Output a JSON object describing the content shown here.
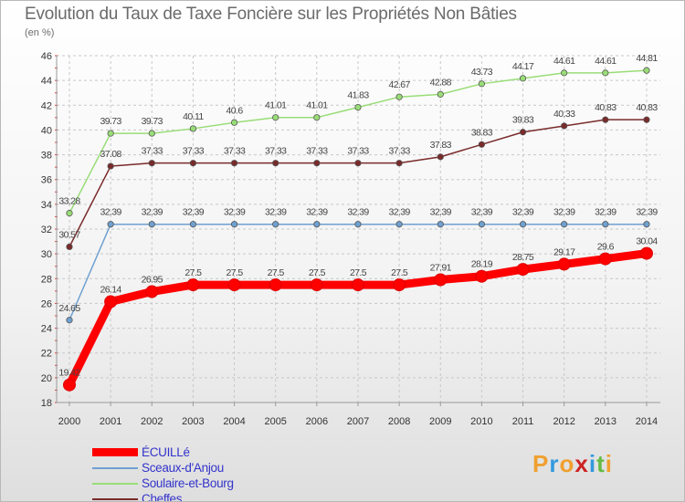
{
  "chart_data": {
    "type": "line",
    "title": "Evolution du Taux de Taxe Foncière sur les Propriétés Non Bâties",
    "ylabel": "(en %)",
    "xlabel": "",
    "x": [
      "2000",
      "2001",
      "2002",
      "2003",
      "2004",
      "2005",
      "2006",
      "2007",
      "2008",
      "2009",
      "2010",
      "2011",
      "2012",
      "2013",
      "2014"
    ],
    "ylim": [
      18,
      46
    ],
    "yticks": [
      "18",
      "20",
      "22",
      "24",
      "26",
      "28",
      "30",
      "32",
      "34",
      "36",
      "38",
      "40",
      "42",
      "44",
      "46"
    ],
    "grid": true,
    "legend": "bottom-left",
    "series": [
      {
        "name": "ÉCUILLé",
        "color": "#ff0000",
        "values": [
          19.42,
          26.14,
          26.95,
          27.5,
          27.5,
          27.5,
          27.5,
          27.5,
          27.5,
          27.91,
          28.19,
          28.75,
          29.17,
          29.6,
          30.04
        ],
        "labels": [
          "19.42",
          "26.14",
          "26.95",
          "27.5",
          "27.5",
          "27.5",
          "27.5",
          "27.5",
          "27.5",
          "27.91",
          "28.19",
          "28.75",
          "29.17",
          "29.6",
          "30.04"
        ]
      },
      {
        "name": "Sceaux-d'Anjou",
        "color": "#6fa0d0",
        "values": [
          24.65,
          32.39,
          32.39,
          32.39,
          32.39,
          32.39,
          32.39,
          32.39,
          32.39,
          32.39,
          32.39,
          32.39,
          32.39,
          32.39,
          32.39
        ],
        "labels": [
          "24.65",
          "32.39",
          "32.39",
          "32.39",
          "32.39",
          "32.39",
          "32.39",
          "32.39",
          "32.39",
          "32.39",
          "32.39",
          "32.39",
          "32.39",
          "32.39",
          "32.39"
        ]
      },
      {
        "name": "Soulaire-et-Bourg",
        "color": "#99dd77",
        "values": [
          33.28,
          39.73,
          39.73,
          40.11,
          40.6,
          41.01,
          41.01,
          41.83,
          42.67,
          42.88,
          43.73,
          44.17,
          44.61,
          44.61,
          44.81
        ],
        "labels": [
          "33.28",
          "39.73",
          "39.73",
          "40.11",
          "40.6",
          "41.01",
          "41.01",
          "41.83",
          "42.67",
          "42.88",
          "43.73",
          "44.17",
          "44.61",
          "44.61",
          "44.81"
        ]
      },
      {
        "name": "Cheffes",
        "color": "#7a2a2a",
        "values": [
          30.57,
          37.08,
          37.33,
          37.33,
          37.33,
          37.33,
          37.33,
          37.33,
          37.33,
          37.83,
          38.83,
          39.83,
          40.33,
          40.83,
          40.83
        ],
        "labels": [
          "30.57",
          "37.08",
          "37.33",
          "37.33",
          "37.33",
          "37.33",
          "37.33",
          "37.33",
          "37.33",
          "37.83",
          "38.83",
          "39.83",
          "40.33",
          "40.83",
          "40.83"
        ]
      }
    ]
  },
  "brand": {
    "name": "Proxiti",
    "letters": [
      "P",
      "r",
      "o",
      "x",
      "i",
      "t",
      "i"
    ],
    "colors": [
      "#f0a030",
      "#3399dd",
      "#f0a030",
      "#cc2222",
      "#3399dd",
      "#66bb44",
      "#f0a030"
    ]
  }
}
